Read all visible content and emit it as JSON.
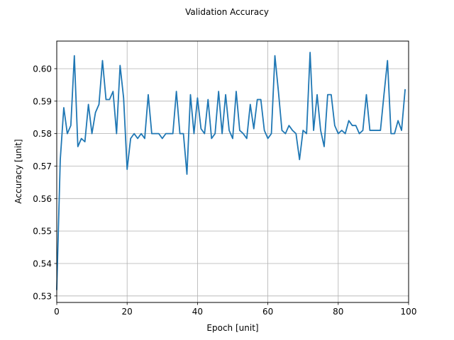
{
  "chart_data": {
    "type": "line",
    "title": "Validation Accuracy",
    "xlabel": "Epoch [unit]",
    "ylabel": "Accuracy [unit]",
    "xlim": [
      0,
      100
    ],
    "ylim": [
      0.528,
      0.6085
    ],
    "xticks": [
      0,
      20,
      40,
      60,
      80,
      100
    ],
    "xtick_labels": [
      "0",
      "20",
      "40",
      "60",
      "80",
      "100"
    ],
    "yticks": [
      0.53,
      0.54,
      0.55,
      0.56,
      0.57,
      0.58,
      0.59,
      0.6
    ],
    "ytick_labels": [
      "0.53",
      "0.54",
      "0.55",
      "0.56",
      "0.57",
      "0.58",
      "0.59",
      "0.60"
    ],
    "grid": true,
    "series": [
      {
        "color": "#1f77b4",
        "x": [
          0,
          1,
          2,
          3,
          4,
          5,
          6,
          7,
          8,
          9,
          10,
          11,
          12,
          13,
          14,
          15,
          16,
          17,
          18,
          19,
          20,
          21,
          22,
          23,
          24,
          25,
          26,
          27,
          28,
          29,
          30,
          31,
          32,
          33,
          34,
          35,
          36,
          37,
          38,
          39,
          40,
          41,
          42,
          43,
          44,
          45,
          46,
          47,
          48,
          49,
          50,
          51,
          52,
          53,
          54,
          55,
          56,
          57,
          58,
          59,
          60,
          61,
          62,
          63,
          64,
          65,
          66,
          67,
          68,
          69,
          70,
          71,
          72,
          73,
          74,
          75,
          76,
          77,
          78,
          79,
          80,
          81,
          82,
          83,
          84,
          85,
          86,
          87,
          88,
          89,
          90,
          91,
          92,
          93,
          94,
          95,
          96,
          97,
          98,
          99
        ],
        "values": [
          0.532,
          0.572,
          0.588,
          0.58,
          0.5825,
          0.604,
          0.576,
          0.5785,
          0.5775,
          0.589,
          0.58,
          0.5865,
          0.589,
          0.6025,
          0.5905,
          0.5905,
          0.593,
          0.58,
          0.601,
          0.591,
          0.569,
          0.5785,
          0.58,
          0.5785,
          0.58,
          0.5785,
          0.592,
          0.58,
          0.58,
          0.58,
          0.5785,
          0.58,
          0.58,
          0.58,
          0.593,
          0.58,
          0.58,
          0.5675,
          0.592,
          0.58,
          0.591,
          0.5815,
          0.58,
          0.5905,
          0.5785,
          0.58,
          0.593,
          0.58,
          0.592,
          0.581,
          0.5785,
          0.593,
          0.581,
          0.58,
          0.5785,
          0.589,
          0.5815,
          0.5905,
          0.5905,
          0.581,
          0.5785,
          0.58,
          0.604,
          0.593,
          0.581,
          0.58,
          0.5825,
          0.581,
          0.58,
          0.572,
          0.581,
          0.58,
          0.605,
          0.581,
          0.592,
          0.581,
          0.576,
          0.592,
          0.592,
          0.5825,
          0.58,
          0.581,
          0.58,
          0.584,
          0.5825,
          0.5825,
          0.58,
          0.581,
          0.592,
          0.581,
          0.581,
          0.581,
          0.581,
          0.592,
          0.6025,
          0.58,
          0.58,
          0.584,
          0.581,
          0.5935
        ]
      }
    ]
  }
}
